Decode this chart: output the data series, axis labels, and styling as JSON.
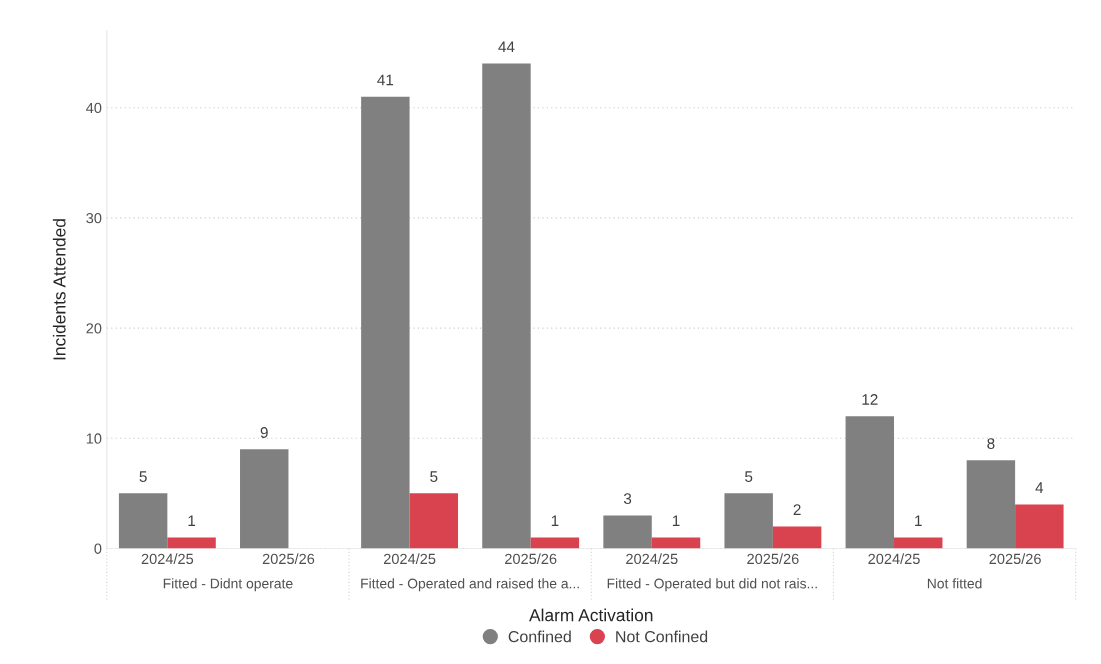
{
  "chart_data": {
    "type": "bar",
    "xlabel": "Alarm Activation",
    "ylabel": "Incidents Attended",
    "categories": [
      "2024/25",
      "2025/26",
      "2024/25",
      "2025/26",
      "2024/25",
      "2025/26",
      "2024/25",
      "2025/26"
    ],
    "series": [
      {
        "name": "Confined",
        "color": "#808080",
        "values": [
          5,
          9,
          41,
          44,
          3,
          5,
          12,
          8
        ]
      },
      {
        "name": "Not Confined",
        "color": "#d9434f",
        "values": [
          1,
          null,
          5,
          1,
          1,
          2,
          1,
          4
        ]
      }
    ],
    "annotations": [
      "Fitted - Didnt operate",
      "Fitted - Operated and raised the a...",
      "Fitted - Operated but did not rais...",
      "Not fitted"
    ],
    "ylim": [
      0,
      47
    ],
    "yticks": [
      0,
      10,
      20,
      30,
      40
    ],
    "grid": "y",
    "legend": "bottom",
    "data_labels": true
  }
}
